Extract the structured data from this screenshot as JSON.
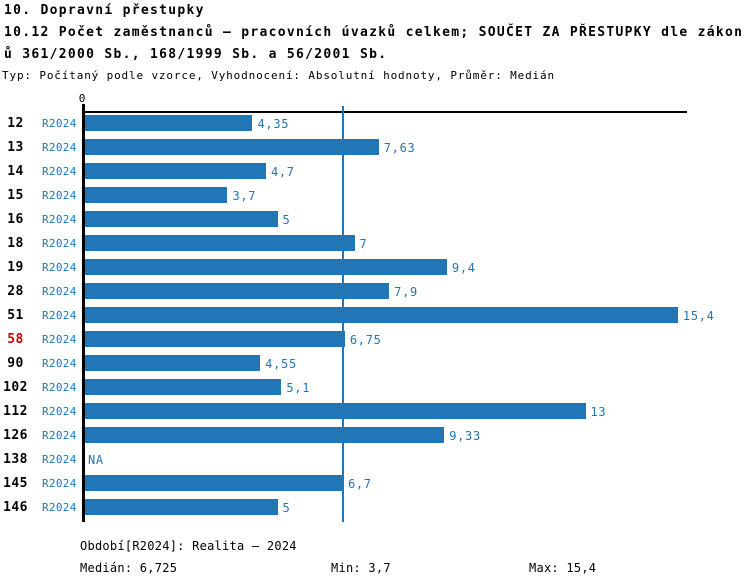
{
  "header": {
    "title": "10. Dopravní přestupky",
    "subtitle_line1": "10.12 Počet zaměstnanců – pracovních úvazků celkem; SOUČET ZA PŘESTUPKY dle zákon",
    "subtitle_line2": "ů 361/2000 Sb., 168/1999 Sb. a 56/2001 Sb.",
    "meta": "Typ: Počítaný podle vzorce, Vyhodnocení: Absolutní hodnoty, Průměr: Medián"
  },
  "chart_data": {
    "type": "bar",
    "orientation": "horizontal",
    "axis_zero_label": "0",
    "series_label": "R2024",
    "categories": [
      "12",
      "13",
      "14",
      "15",
      "16",
      "18",
      "19",
      "28",
      "51",
      "58",
      "90",
      "102",
      "112",
      "126",
      "138",
      "145",
      "146"
    ],
    "values": [
      4.35,
      7.63,
      4.7,
      3.7,
      5,
      7,
      9.4,
      7.9,
      15.4,
      6.75,
      4.55,
      5.1,
      13,
      9.33,
      null,
      6.7,
      5
    ],
    "value_labels": [
      "4,35",
      "7,63",
      "4,7",
      "3,7",
      "5",
      "7",
      "9,4",
      "7,9",
      "15,4",
      "6,75",
      "4,55",
      "5,1",
      "13",
      "9,33",
      "NA",
      "6,7",
      "5"
    ],
    "highlighted_category": "58",
    "median_line_value": 6.725,
    "xlim": [
      0,
      15.66
    ],
    "legend_position": "none",
    "grid": false,
    "colors": {
      "bar": "#2176b5",
      "label_text": "#2176b5",
      "highlight_text": "#d00000",
      "axis": "#000000"
    }
  },
  "footer": {
    "period": "Období[R2024]: Realita – 2024",
    "median": "Medián: 6,725",
    "min": "Min: 3,7",
    "max": "Max: 15,4"
  }
}
